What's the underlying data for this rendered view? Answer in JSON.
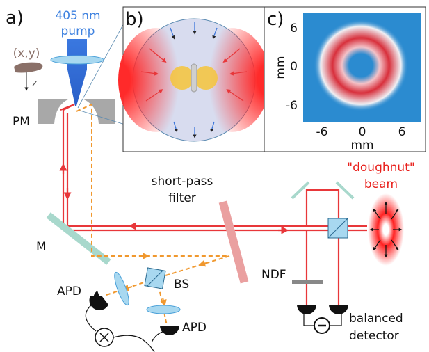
{
  "panel_a": {
    "label": "a)",
    "pump_wavelength": "405 nm",
    "pump": "pump",
    "stage": "(x,y)",
    "axis_z": "z",
    "parabolic_mirror": "PM",
    "mirror": "M",
    "filter_line1": "short-pass",
    "filter_line2": "filter",
    "beam_line1": "\"doughnut\"",
    "beam_line2": "beam",
    "ndf": "NDF",
    "apd_left": "APD",
    "apd_bottom": "APD",
    "beam_splitter": "BS",
    "detector_line1": "balanced",
    "detector_line2": "detector"
  },
  "panel_b": {
    "label": "b)"
  },
  "panel_c": {
    "label": "c)",
    "yticks": [
      "6",
      "0",
      "-6"
    ],
    "xticks": [
      "-6",
      "0",
      "6"
    ],
    "xlabel": "mm",
    "ylabel": "mm"
  }
}
